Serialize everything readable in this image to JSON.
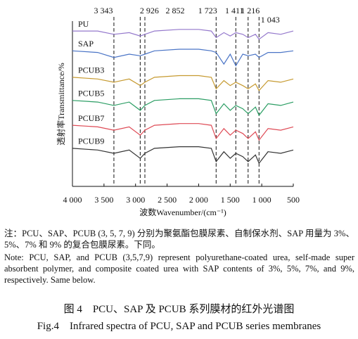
{
  "chart_data": {
    "type": "line",
    "ylabel": "透射率Transmittance/%",
    "xlabel": "波数Wavenumber/(cm⁻¹)",
    "x": [
      4000,
      3600,
      3343,
      3100,
      2926,
      2852,
      2700,
      2300,
      2000,
      1800,
      1723,
      1600,
      1500,
      1411,
      1300,
      1216,
      1100,
      1043,
      900,
      700,
      500
    ],
    "xlim": [
      4000,
      500
    ],
    "ylim": [
      0,
      100
    ],
    "xticks": [
      {
        "value": 4000,
        "label": "4 000"
      },
      {
        "value": 3500,
        "label": "3 500"
      },
      {
        "value": 3000,
        "label": "3 000"
      },
      {
        "value": 2500,
        "label": "2 500"
      },
      {
        "value": 2000,
        "label": "2 000"
      },
      {
        "value": 1500,
        "label": "1 500"
      },
      {
        "value": 1000,
        "label": "1 000"
      },
      500
    ],
    "annotations": [
      {
        "value": 3343,
        "label": "3 343"
      },
      {
        "value": 2926,
        "label": "2 926"
      },
      {
        "value": 2852,
        "label": "2 852"
      },
      {
        "value": 1723,
        "label": "1 723"
      },
      {
        "value": 1411,
        "label": "1 411"
      },
      {
        "value": 1216,
        "label": "1 216"
      },
      {
        "value": 1043,
        "label": "1 043"
      }
    ],
    "series": [
      {
        "name": "PU",
        "color": "#9478cc",
        "values": [
          94,
          94,
          92,
          93,
          91,
          92,
          94,
          95,
          95,
          94,
          90,
          93,
          91,
          93,
          92,
          90,
          92,
          89,
          93,
          92,
          94
        ]
      },
      {
        "name": "SAP",
        "color": "#4a74c6",
        "values": [
          82,
          81,
          78,
          80,
          79,
          80,
          82,
          83,
          83,
          82,
          81,
          74,
          80,
          73,
          80,
          79,
          80,
          78,
          81,
          81,
          82
        ]
      },
      {
        "name": "PCUB3",
        "color": "#c69a30",
        "values": [
          66,
          65,
          63,
          65,
          61,
          63,
          66,
          67,
          67,
          66,
          59,
          64,
          61,
          63,
          61,
          59,
          62,
          58,
          64,
          63,
          65
        ]
      },
      {
        "name": "PCUB5",
        "color": "#2a9d63",
        "values": [
          52,
          51,
          49,
          51,
          46,
          49,
          52,
          53,
          53,
          52,
          44,
          50,
          46,
          49,
          47,
          44,
          48,
          43,
          50,
          49,
          51
        ]
      },
      {
        "name": "PCUB7",
        "color": "#de4a55",
        "values": [
          37,
          36,
          34,
          36,
          31,
          34,
          37,
          38,
          38,
          37,
          29,
          35,
          31,
          34,
          32,
          29,
          33,
          28,
          35,
          34,
          36
        ]
      },
      {
        "name": "PCUB9",
        "color": "#333333",
        "values": [
          23,
          22,
          20,
          22,
          17,
          20,
          23,
          24,
          24,
          23,
          15,
          21,
          17,
          20,
          18,
          15,
          19,
          14,
          21,
          20,
          22
        ]
      }
    ],
    "note_cn": "注：PCU、SAP、PCUB (3, 5, 7, 9) 分别为聚氨酯包膜尿素、自制保水剂、SAP 用量为 3%、5%、7% 和 9% 的复合包膜尿素。下同。",
    "note_en": "Note: PCU, SAP, and PCUB (3,5,7,9) represent polyurethane-coated urea, self-made super absorbent polymer, and composite coated urea with SAP contents of 3%, 5%, 7%, and 9%, respectively. Same below.",
    "caption_cn": "图 4　PCU、SAP 及 PCUB 系列膜材的红外光谱图",
    "caption_en": "Fig.4　Infrared spectra of PCU, SAP and PCUB series membranes"
  }
}
